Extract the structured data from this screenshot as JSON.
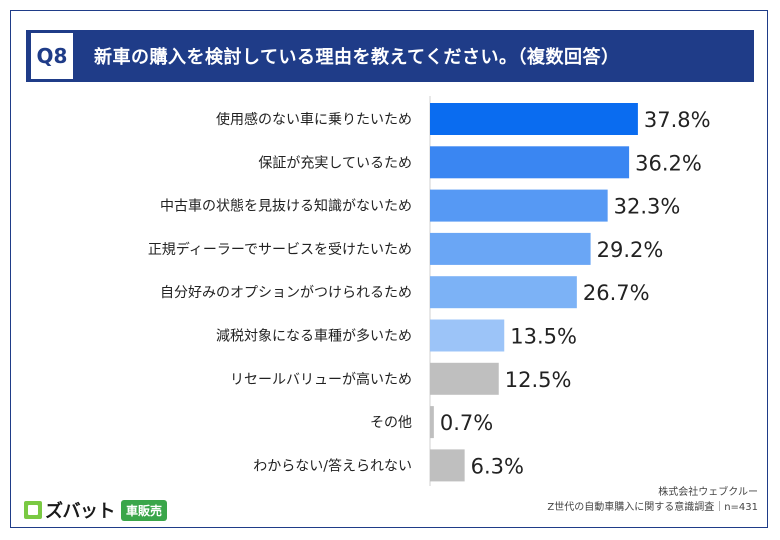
{
  "header": {
    "question_tag": "Q8",
    "title": "新車の購入を検討している理由を教えてください。（複数回答）"
  },
  "chart_data": {
    "type": "bar",
    "orientation": "horizontal",
    "categories": [
      "使用感のない車に乗りたいため",
      "保証が充実しているため",
      "中古車の状態を見抜ける知識がないため",
      "正規ディーラーでサービスを受けたいため",
      "自分好みのオプションがつけられるため",
      "減税対象になる車種が多いため",
      "リセールバリューが高いため",
      "その他",
      "わからない/答えられない"
    ],
    "values": [
      37.8,
      36.2,
      32.3,
      29.2,
      26.7,
      13.5,
      12.5,
      0.7,
      6.3
    ],
    "value_labels": [
      "37.8%",
      "36.2%",
      "32.3%",
      "29.2%",
      "26.7%",
      "13.5%",
      "12.5%",
      "0.7%",
      "6.3%"
    ],
    "colors": [
      "#0a6cf0",
      "#3a86f2",
      "#5699f4",
      "#6aa6f5",
      "#7cb2f6",
      "#9cc4f8",
      "#bfbfbf",
      "#bfbfbf",
      "#bfbfbf"
    ],
    "xlim": [
      0,
      40
    ],
    "grid": false,
    "legend": "none"
  },
  "logo": {
    "brand": "ズバット",
    "badge": "車販売"
  },
  "source": {
    "company": "株式会社ウェブクルー",
    "survey": "Z世代の自動車購入に関する意識調査｜n=431"
  }
}
